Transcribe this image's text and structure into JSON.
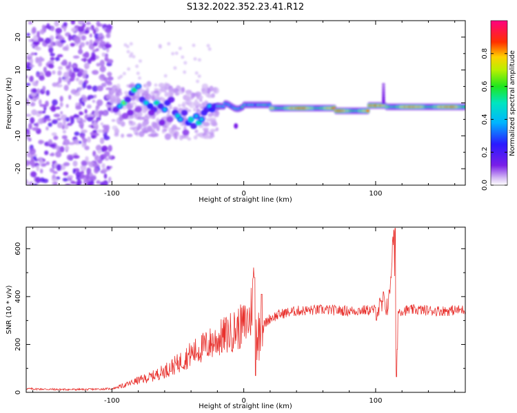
{
  "figure_title": "S132.2022.352.23.41.R12",
  "colors": {
    "snr_line": "#e8302c",
    "axis": "#000000"
  },
  "chart_data": [
    {
      "type": "heatmap",
      "xlabel": "Height of straight line (km)",
      "ylabel": "Frequency (Hz)",
      "xlim": [
        -165,
        168
      ],
      "ylim": [
        -25,
        25
      ],
      "x_ticks": [
        -100,
        0,
        100
      ],
      "y_ticks": [
        -20,
        -10,
        0,
        10,
        20
      ],
      "colorbar": {
        "label": "Normalized spectral amplitude",
        "range": [
          0,
          1
        ],
        "ticks": [
          "0.0",
          "0.2",
          "0.4",
          "0.6",
          "0.8"
        ],
        "colormap": "rainbow (purple-blue-cyan-green-yellow-red-magenta)"
      },
      "features": [
        {
          "region": "noise",
          "x_range": [
            -165,
            -100
          ],
          "y_range": [
            -25,
            25
          ],
          "amplitude": "low"
        },
        {
          "region": "scattered",
          "x_range": [
            -100,
            -20
          ],
          "freq_center": [
            0,
            -3
          ],
          "amplitude": "medium"
        },
        {
          "region": "line",
          "x_range": [
            -20,
            168
          ],
          "freq_center": -1.5,
          "amplitude": "high"
        }
      ]
    },
    {
      "type": "line",
      "xlabel": "Height of straight line (km)",
      "ylabel": "SNR (10 * v/v)",
      "xlim": [
        -165,
        168
      ],
      "ylim": [
        0,
        690
      ],
      "x_ticks": [
        -100,
        0,
        100
      ],
      "y_ticks": [
        0,
        200,
        400,
        600
      ],
      "series": [
        {
          "x": [
            -165,
            -140,
            -120,
            -100,
            -90,
            -80,
            -70,
            -60,
            -50,
            -40,
            -30,
            -20,
            -10,
            0,
            5,
            8,
            10,
            15,
            20,
            30,
            40,
            60,
            80,
            100,
            110,
            114,
            115,
            116,
            118,
            130,
            150,
            168
          ],
          "y": [
            15,
            12,
            12,
            15,
            30,
            50,
            65,
            90,
            120,
            160,
            190,
            220,
            250,
            280,
            310,
            480,
            230,
            280,
            310,
            330,
            340,
            345,
            340,
            345,
            370,
            690,
            65,
            330,
            340,
            345,
            340,
            345
          ]
        }
      ]
    }
  ]
}
